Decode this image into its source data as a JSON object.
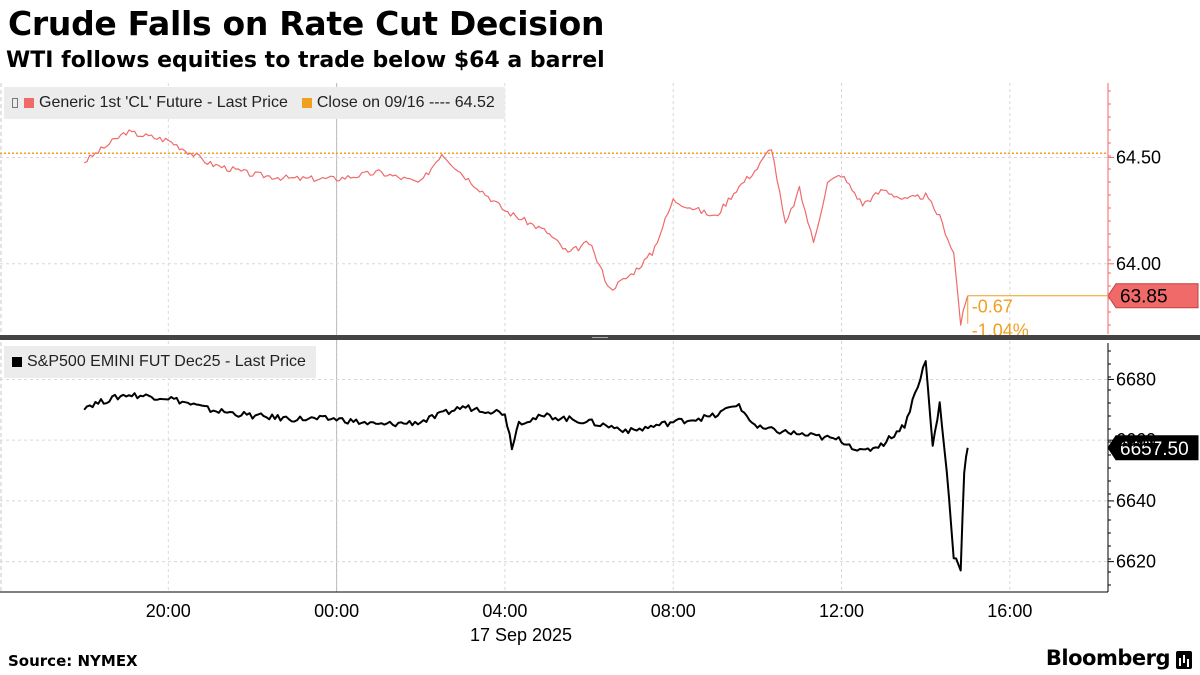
{
  "header": {
    "title": "Crude Falls on Rate Cut Decision",
    "subtitle": "WTI follows equities to trade below $64 a barrel"
  },
  "footer": {
    "source": "Source: NYMEX",
    "brand": "Bloomberg"
  },
  "colors": {
    "wti": "#f06a6a",
    "close_line": "#f0a020",
    "sp500": "#000000",
    "axis": "#f06a6a",
    "grid": "#d8d8d8"
  },
  "chart_data": [
    {
      "type": "line",
      "panel": "top",
      "legend": [
        {
          "label": "Generic 1st 'CL' Future - Last Price",
          "color": "#f06a6a",
          "icon": "tool-icon"
        },
        {
          "label": "Close on 09/16 ---- 64.52",
          "color": "#f0a020"
        }
      ],
      "series": [
        {
          "name": "Generic 1st 'CL' Future - Last Price",
          "x": [
            "09-16 18:00",
            "09-16 19:00",
            "09-16 20:00",
            "09-16 21:00",
            "09-16 22:00",
            "09-16 23:00",
            "09-17 00:00",
            "09-17 01:00",
            "09-17 02:00",
            "09-17 02:30",
            "09-17 03:00",
            "09-17 04:00",
            "09-17 05:00",
            "09-17 05:30",
            "09-17 06:00",
            "09-17 06:30",
            "09-17 07:00",
            "09-17 07:30",
            "09-17 08:00",
            "09-17 09:00",
            "09-17 09:30",
            "09-17 10:00",
            "09-17 10:20",
            "09-17 10:40",
            "09-17 11:00",
            "09-17 11:20",
            "09-17 11:40",
            "09-17 12:00",
            "09-17 12:30",
            "09-17 13:00",
            "09-17 13:30",
            "09-17 14:00",
            "09-17 14:20",
            "09-17 14:40",
            "09-17 14:50",
            "09-17 15:00"
          ],
          "values": [
            64.48,
            64.62,
            64.58,
            64.47,
            64.42,
            64.4,
            64.4,
            64.43,
            64.38,
            64.52,
            64.42,
            64.25,
            64.15,
            64.05,
            64.1,
            63.88,
            63.95,
            64.05,
            64.3,
            64.22,
            64.35,
            64.45,
            64.55,
            64.18,
            64.35,
            64.1,
            64.38,
            64.42,
            64.28,
            64.35,
            64.3,
            64.32,
            64.22,
            64.05,
            63.72,
            63.85
          ]
        }
      ],
      "reference_line": {
        "label": "Close on 09/16",
        "value": 64.52
      },
      "last_value_label": "63.85",
      "annotations": [
        "-0.67",
        "-1.04%"
      ],
      "y_ticks": [
        "64.50",
        "64.00"
      ],
      "ylim": [
        63.67,
        64.85
      ]
    },
    {
      "type": "line",
      "panel": "bottom",
      "legend": [
        {
          "label": "S&P500 EMINI FUT Dec25 - Last Price",
          "color": "#000000"
        }
      ],
      "series": [
        {
          "name": "S&P500 EMINI FUT Dec25 - Last Price",
          "x": [
            "09-16 18:00",
            "09-16 19:00",
            "09-16 20:00",
            "09-16 21:00",
            "09-16 22:00",
            "09-16 23:00",
            "09-17 00:00",
            "09-17 01:00",
            "09-17 02:00",
            "09-17 03:00",
            "09-17 04:00",
            "09-17 04:10",
            "09-17 04:20",
            "09-17 05:00",
            "09-17 06:00",
            "09-17 07:00",
            "09-17 08:00",
            "09-17 09:00",
            "09-17 09:30",
            "09-17 10:00",
            "09-17 11:00",
            "09-17 12:00",
            "09-17 12:30",
            "09-17 13:00",
            "09-17 13:30",
            "09-17 14:00",
            "09-17 14:10",
            "09-17 14:20",
            "09-17 14:30",
            "09-17 14:40",
            "09-17 14:50",
            "09-17 14:55",
            "09-17 15:00"
          ],
          "values": [
            6671,
            6675,
            6674,
            6670,
            6668,
            6667,
            6667,
            6665,
            6666,
            6671,
            6669,
            6658,
            6666,
            6668,
            6666,
            6663,
            6666,
            6668,
            6672,
            6664,
            6662,
            6660,
            6656,
            6659,
            6665,
            6686,
            6658,
            6672,
            6650,
            6622,
            6618,
            6650,
            6657.5
          ]
        }
      ],
      "last_value_label": "6657.50",
      "y_ticks": [
        "6680",
        "6660",
        "6640",
        "6620"
      ],
      "ylim": [
        6610,
        6692
      ]
    }
  ],
  "x_axis": {
    "tick_labels": [
      "20:00",
      "00:00",
      "04:00",
      "08:00",
      "12:00",
      "16:00"
    ],
    "tick_times": [
      "09-16 20:00",
      "09-17 00:00",
      "09-17 04:00",
      "09-17 08:00",
      "09-17 12:00",
      "09-17 16:00"
    ],
    "date_label": "17 Sep 2025",
    "range": [
      "09-16 16:00",
      "09-17 18:20"
    ]
  }
}
